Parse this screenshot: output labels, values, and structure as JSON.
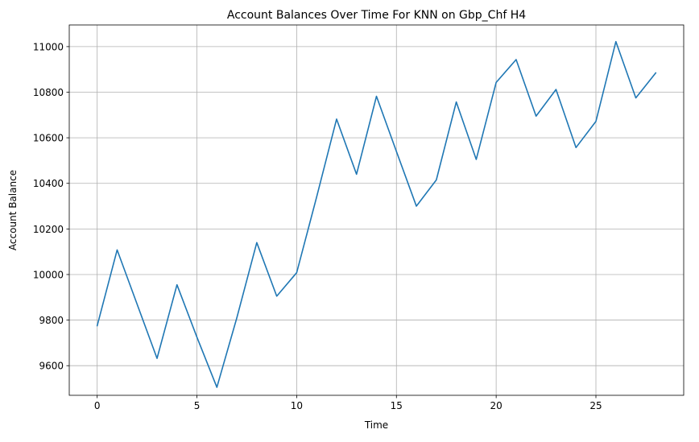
{
  "chart_data": {
    "type": "line",
    "title": "Account Balances Over Time For KNN on Gbp_Chf H4",
    "xlabel": "Time",
    "ylabel": "Account Balance",
    "xlim": [
      -1.4,
      29.4
    ],
    "ylim": [
      9470,
      11095
    ],
    "xticks": [
      0,
      5,
      10,
      15,
      20,
      25
    ],
    "yticks": [
      9600,
      9800,
      10000,
      10200,
      10400,
      10600,
      10800,
      11000
    ],
    "grid": true,
    "series": [
      {
        "color": "#1f77b4",
        "x": [
          0,
          1,
          2,
          3,
          4,
          5,
          6,
          7,
          8,
          9,
          10,
          11,
          12,
          13,
          14,
          15,
          16,
          17,
          18,
          19,
          20,
          21,
          22,
          23,
          24,
          25,
          26,
          27,
          28
        ],
        "y": [
          9775,
          10108,
          9870,
          9632,
          9955,
          9725,
          9505,
          9810,
          10140,
          9905,
          10008,
          10340,
          10682,
          10440,
          10782,
          10540,
          10300,
          10415,
          10757,
          10505,
          10843,
          10943,
          10695,
          10812,
          10557,
          10672,
          11022,
          10775,
          10885
        ]
      }
    ]
  }
}
